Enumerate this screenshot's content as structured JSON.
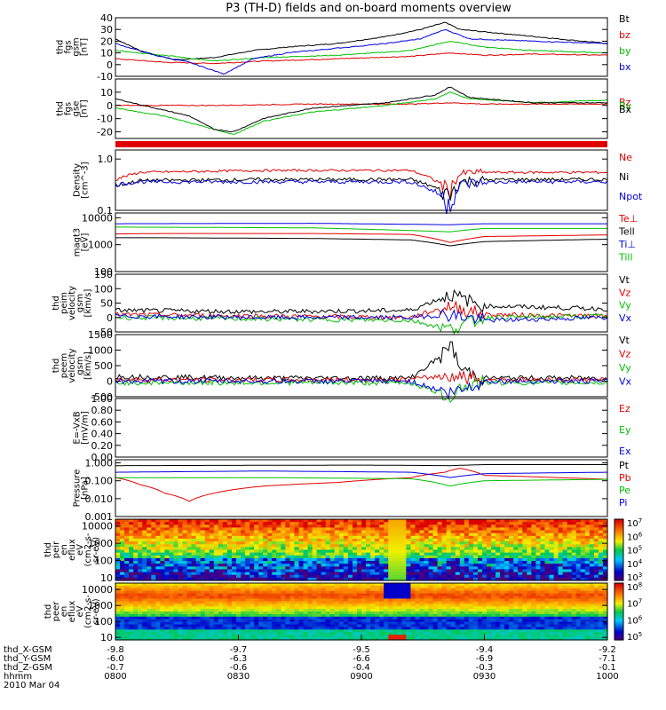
{
  "title": "P3 (TH-D) fields and on-board moments overview",
  "colors": {
    "black": "#000000",
    "red": "#e00000",
    "green": "#00c000",
    "blue": "#0000e0"
  },
  "chart_data": [
    {
      "type": "line",
      "id": "fgs_gsm",
      "ylabel": [
        "thd",
        "fgs",
        "gsm",
        "[nT]"
      ],
      "ylim": [
        -10,
        40
      ],
      "yticks": [
        {
          "v": 40,
          "t": "40"
        },
        {
          "v": 30,
          "t": "30"
        },
        {
          "v": 20,
          "t": "20"
        },
        {
          "v": 10,
          "t": "10"
        },
        {
          "v": 0,
          "t": "0"
        },
        {
          "v": -10,
          "t": "-10"
        }
      ],
      "series": [
        {
          "name": "Bt",
          "color": "black",
          "x": [
            0,
            0.05,
            0.12,
            0.2,
            0.28,
            0.35,
            0.45,
            0.55,
            0.62,
            0.67,
            0.7,
            0.75,
            0.85,
            0.95,
            1
          ],
          "y": [
            22,
            12,
            4,
            6,
            12,
            15,
            18,
            24,
            30,
            36,
            30,
            28,
            24,
            20,
            18
          ]
        },
        {
          "name": "bz",
          "color": "red",
          "x": [
            0,
            0.1,
            0.2,
            0.3,
            0.45,
            0.6,
            0.68,
            0.75,
            0.85,
            1
          ],
          "y": [
            5,
            2,
            1,
            3,
            5,
            7,
            10,
            8,
            9,
            8
          ]
        },
        {
          "name": "by",
          "color": "green",
          "x": [
            0,
            0.1,
            0.2,
            0.3,
            0.45,
            0.6,
            0.68,
            0.75,
            0.85,
            1
          ],
          "y": [
            12,
            8,
            3,
            6,
            8,
            12,
            20,
            15,
            12,
            10
          ]
        },
        {
          "name": "bx",
          "color": "blue",
          "x": [
            0,
            0.08,
            0.15,
            0.22,
            0.28,
            0.35,
            0.45,
            0.55,
            0.62,
            0.67,
            0.72,
            0.85,
            1
          ],
          "y": [
            18,
            8,
            2,
            -8,
            5,
            10,
            14,
            18,
            22,
            30,
            22,
            20,
            18
          ]
        }
      ]
    },
    {
      "type": "line",
      "id": "fgs_gse",
      "ylabel": [
        "thd",
        "fgs",
        "gse",
        "[nT]"
      ],
      "ylim": [
        -25,
        20
      ],
      "yticks": [
        {
          "v": 10,
          "t": "10"
        },
        {
          "v": 0,
          "t": "0"
        },
        {
          "v": -10,
          "t": "-10"
        },
        {
          "v": -20,
          "t": "-20"
        }
      ],
      "series": [
        {
          "name": "Bz",
          "color": "red",
          "x": [
            0,
            0.2,
            0.4,
            0.6,
            0.68,
            0.75,
            1
          ],
          "y": [
            0,
            0,
            1,
            1,
            2,
            1,
            1
          ]
        },
        {
          "name": "By",
          "color": "green",
          "x": [
            0,
            0.1,
            0.2,
            0.24,
            0.3,
            0.4,
            0.55,
            0.65,
            0.68,
            0.72,
            0.85,
            1
          ],
          "y": [
            -2,
            -8,
            -18,
            -22,
            -12,
            -5,
            0,
            5,
            10,
            5,
            2,
            4
          ]
        },
        {
          "name": "Bx",
          "color": "black",
          "x": [
            0,
            0.08,
            0.15,
            0.2,
            0.24,
            0.3,
            0.4,
            0.55,
            0.65,
            0.68,
            0.72,
            0.85,
            1
          ],
          "y": [
            5,
            -2,
            -8,
            -18,
            -20,
            -10,
            -2,
            2,
            8,
            14,
            6,
            2,
            2
          ]
        }
      ]
    },
    {
      "type": "bar",
      "id": "flags",
      "ylabel": [],
      "series": [
        {
          "name": "",
          "color": "red",
          "values": [
            1
          ]
        }
      ]
    },
    {
      "type": "line",
      "id": "density",
      "ylabel": [
        "Density",
        "[cm^-3]"
      ],
      "log": true,
      "ylim": [
        0.1,
        1.5
      ],
      "yticks": [
        {
          "v": 1.0,
          "t": "1.0"
        },
        {
          "v": 0.1,
          "t": "0.1"
        }
      ],
      "series": [
        {
          "name": "Ne",
          "color": "red",
          "x": [
            0,
            0.05,
            0.3,
            0.6,
            0.68,
            0.7,
            0.72,
            0.8,
            1
          ],
          "y": [
            0.4,
            0.55,
            0.6,
            0.6,
            0.25,
            0.5,
            0.55,
            0.55,
            0.55
          ]
        },
        {
          "name": "Ni",
          "color": "black",
          "x": [
            0,
            0.05,
            0.3,
            0.6,
            0.68,
            0.7,
            0.72,
            0.8,
            1
          ],
          "y": [
            0.3,
            0.38,
            0.4,
            0.4,
            0.2,
            0.35,
            0.38,
            0.4,
            0.4
          ]
        },
        {
          "name": "Npot",
          "color": "blue",
          "x": [
            0,
            0.05,
            0.3,
            0.6,
            0.68,
            0.7,
            0.72,
            0.8,
            1
          ],
          "y": [
            0.32,
            0.36,
            0.36,
            0.36,
            0.15,
            0.3,
            0.34,
            0.36,
            0.36
          ]
        }
      ]
    },
    {
      "type": "line",
      "id": "temperature",
      "ylabel": [
        "magt3",
        "[eV]"
      ],
      "log": true,
      "ylim": [
        100,
        15000
      ],
      "yticks": [
        {
          "v": 10000,
          "t": "10000"
        },
        {
          "v": 1000,
          "t": "1000"
        },
        {
          "v": 100,
          "t": "100"
        }
      ],
      "series": [
        {
          "name": "Te⊥",
          "color": "red",
          "x": [
            0,
            0.1,
            0.4,
            0.6,
            0.68,
            0.75,
            1
          ],
          "y": [
            2500,
            2600,
            2600,
            2400,
            1200,
            2000,
            2300
          ]
        },
        {
          "name": "Tell",
          "color": "black",
          "x": [
            0,
            0.1,
            0.4,
            0.6,
            0.68,
            0.75,
            1
          ],
          "y": [
            1800,
            1800,
            1700,
            1500,
            900,
            1300,
            1600
          ]
        },
        {
          "name": "Ti⊥",
          "color": "blue",
          "x": [
            0,
            0.4,
            0.68,
            0.75,
            1
          ],
          "y": [
            6000,
            6200,
            5500,
            6000,
            6000
          ]
        },
        {
          "name": "Till",
          "color": "green",
          "x": [
            0,
            0.4,
            0.68,
            0.75,
            1
          ],
          "y": [
            4500,
            4200,
            3000,
            4000,
            4000
          ]
        }
      ]
    },
    {
      "type": "line",
      "id": "peim_velocity",
      "ylabel": [
        "thd",
        "peim",
        "velocity",
        "gsm",
        "[km/s]"
      ],
      "ylim": [
        -50,
        150
      ],
      "yticks": [
        {
          "v": 150,
          "t": "150"
        },
        {
          "v": 100,
          "t": "100"
        },
        {
          "v": 50,
          "t": "50"
        },
        {
          "v": 0,
          "t": "0"
        },
        {
          "v": -50,
          "t": "-50"
        }
      ],
      "series": [
        {
          "name": "Vt",
          "color": "black",
          "x": [
            0,
            0.3,
            0.6,
            0.68,
            0.75,
            1
          ],
          "y": [
            25,
            20,
            25,
            80,
            40,
            30
          ]
        },
        {
          "name": "Vz",
          "color": "red",
          "x": [
            0,
            0.3,
            0.6,
            0.68,
            0.75,
            1
          ],
          "y": [
            10,
            5,
            0,
            40,
            10,
            5
          ]
        },
        {
          "name": "Vy",
          "color": "green",
          "x": [
            0,
            0.3,
            0.6,
            0.68,
            0.75,
            1
          ],
          "y": [
            0,
            -5,
            -10,
            -40,
            0,
            5
          ]
        },
        {
          "name": "Vx",
          "color": "blue",
          "x": [
            0,
            0.3,
            0.6,
            0.68,
            0.75,
            1
          ],
          "y": [
            5,
            0,
            0,
            10,
            -10,
            0
          ]
        }
      ]
    },
    {
      "type": "line",
      "id": "peem_velocity",
      "ylabel": [
        "thd",
        "peem",
        "velocity",
        "gsm",
        "[km/s]"
      ],
      "ylim": [
        -500,
        1500
      ],
      "yticks": [
        {
          "v": 1500,
          "t": "1500"
        },
        {
          "v": 1000,
          "t": "1000"
        },
        {
          "v": 500,
          "t": "500"
        },
        {
          "v": 0,
          "t": "0"
        },
        {
          "v": -500,
          "t": "-500"
        }
      ],
      "series": [
        {
          "name": "Vt",
          "color": "black",
          "x": [
            0,
            0.3,
            0.6,
            0.67,
            0.68,
            0.7,
            0.75,
            1
          ],
          "y": [
            150,
            100,
            100,
            900,
            1300,
            400,
            100,
            100
          ]
        },
        {
          "name": "Vz",
          "color": "red",
          "x": [
            0,
            0.3,
            0.6,
            0.68,
            0.75,
            1
          ],
          "y": [
            50,
            40,
            50,
            200,
            50,
            40
          ]
        },
        {
          "name": "Vy",
          "color": "green",
          "x": [
            0,
            0.3,
            0.6,
            0.68,
            0.7,
            0.75,
            1
          ],
          "y": [
            -50,
            -50,
            -50,
            -500,
            -200,
            -50,
            -50
          ]
        },
        {
          "name": "Vx",
          "color": "blue",
          "x": [
            0,
            0.3,
            0.6,
            0.68,
            0.75,
            1
          ],
          "y": [
            0,
            0,
            0,
            -400,
            0,
            0
          ]
        }
      ]
    },
    {
      "type": "line",
      "id": "e_field",
      "ylabel": [
        "E=-VxB",
        "[mV/m]"
      ],
      "ylim": [
        0,
        1
      ],
      "yticks": [
        {
          "v": 1.0,
          "t": "1.00"
        },
        {
          "v": 0.8,
          "t": "0.80"
        },
        {
          "v": 0.6,
          "t": "0.60"
        },
        {
          "v": 0.4,
          "t": "0.40"
        },
        {
          "v": 0.2,
          "t": "0.20"
        },
        {
          "v": 0.0,
          "t": "0.00"
        }
      ],
      "series": [
        {
          "name": "Ez",
          "color": "red",
          "x": [],
          "y": []
        },
        {
          "name": "Ey",
          "color": "green",
          "x": [],
          "y": []
        },
        {
          "name": "Ex",
          "color": "blue",
          "x": [],
          "y": []
        }
      ]
    },
    {
      "type": "line",
      "id": "pressure",
      "ylabel": [
        "Pressure",
        "[nPa]"
      ],
      "log": true,
      "ylim": [
        0.001,
        1.5
      ],
      "yticks": [
        {
          "v": 1.0,
          "t": "1.000"
        },
        {
          "v": 0.1,
          "t": "0.100"
        },
        {
          "v": 0.01,
          "t": "0.010"
        },
        {
          "v": 0.001,
          "t": "0.001"
        }
      ],
      "series": [
        {
          "name": "Pt",
          "color": "black",
          "x": [
            0,
            0.5,
            0.68,
            0.75,
            1
          ],
          "y": [
            0.7,
            0.75,
            0.7,
            0.8,
            0.8
          ]
        },
        {
          "name": "Pb",
          "color": "red",
          "x": [
            0,
            0.05,
            0.1,
            0.15,
            0.2,
            0.3,
            0.45,
            0.6,
            0.67,
            0.7,
            0.75,
            0.9,
            1
          ],
          "y": [
            0.15,
            0.06,
            0.02,
            0.007,
            0.02,
            0.05,
            0.08,
            0.15,
            0.3,
            0.5,
            0.2,
            0.15,
            0.12
          ]
        },
        {
          "name": "Pe",
          "color": "green",
          "x": [
            0,
            0.3,
            0.6,
            0.68,
            0.75,
            1
          ],
          "y": [
            0.15,
            0.15,
            0.13,
            0.05,
            0.1,
            0.12
          ]
        },
        {
          "name": "Pi",
          "color": "blue",
          "x": [
            0,
            0.3,
            0.6,
            0.68,
            0.75,
            1
          ],
          "y": [
            0.3,
            0.35,
            0.3,
            0.15,
            0.25,
            0.3
          ]
        }
      ]
    },
    {
      "type": "heatmap",
      "id": "peir_eflux",
      "ylabel": [
        "thd",
        "peir",
        "en",
        "eflux",
        "eV",
        "(cm2-s-",
        "sr-eV)"
      ],
      "log": true,
      "ylim": [
        7,
        25000
      ],
      "yticks": [
        {
          "v": 10000,
          "t": "10000"
        },
        {
          "v": 1000,
          "t": "1000"
        },
        {
          "v": 100,
          "t": "100"
        },
        {
          "v": 10,
          "t": "10"
        }
      ],
      "colorbar": {
        "range": [
          "10^3",
          "10^7"
        ],
        "ticks": [
          "10^7",
          "10^6",
          "10^5",
          "10^4",
          "10^3"
        ]
      }
    },
    {
      "type": "heatmap",
      "id": "peer_eflux",
      "ylabel": [
        "thd",
        "peer",
        "en",
        "eflux",
        "eV",
        "(cm2-s-",
        "sr-eV)"
      ],
      "log": true,
      "ylim": [
        7,
        25000
      ],
      "yticks": [
        {
          "v": 10000,
          "t": "10000"
        },
        {
          "v": 1000,
          "t": "1000"
        },
        {
          "v": 100,
          "t": "100"
        },
        {
          "v": 10,
          "t": "10"
        }
      ],
      "colorbar": {
        "range": [
          "10^5",
          "10^8"
        ],
        "ticks": [
          "10^8",
          "10^7",
          "10^6",
          "10^5"
        ]
      }
    }
  ],
  "x_axis": {
    "rows": [
      {
        "label": "thd_X-GSM",
        "values": [
          "-9.8",
          "-9.7",
          "-9.5",
          "-9.4",
          "-9.2"
        ]
      },
      {
        "label": "thd_Y-GSM",
        "values": [
          "-6.0",
          "-6.3",
          "-6.6",
          "-6.9",
          "-7.1"
        ]
      },
      {
        "label": "thd_Z-GSM",
        "values": [
          "-0.7",
          "-0.6",
          "-0.4",
          "-0.3",
          "-0.1"
        ]
      },
      {
        "label": "hhmm",
        "values": [
          "0800",
          "0830",
          "0900",
          "0930",
          "1000"
        ]
      }
    ],
    "date": "2010 Mar 04"
  }
}
